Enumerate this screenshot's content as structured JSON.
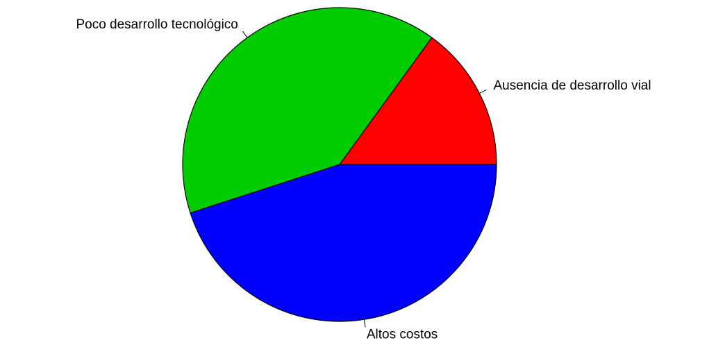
{
  "chart_data": {
    "type": "pie",
    "categories": [
      "Ausencia de desarrollo vial",
      "Poco desarrollo tecnológico",
      "Altos costos"
    ],
    "values": [
      15,
      40,
      45
    ],
    "colors": [
      "#ff0000",
      "#00cc00",
      "#0000ff"
    ]
  }
}
